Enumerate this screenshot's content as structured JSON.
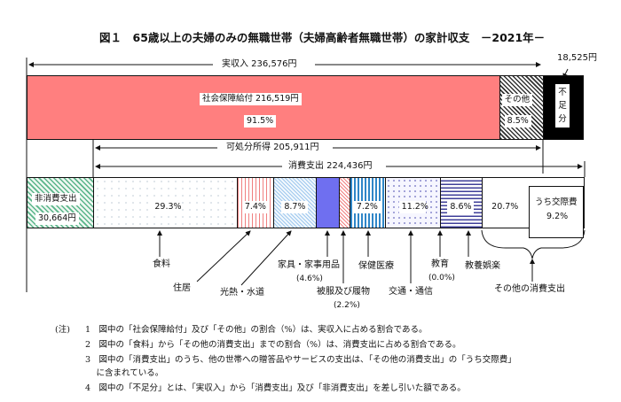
{
  "title": "図１　65歳以上の夫婦のみの無職世帯（夫婦高齢者無職世帯）の家計収支　－2021年－",
  "chart_data": {
    "type": "bar",
    "title": "図１　65歳以上の夫婦のみの無職世帯（夫婦高齢者無職世帯）の家計収支　－2021年－",
    "income": {
      "label": "実収入 236,576円",
      "total": 236576,
      "segments": [
        {
          "name": "社会保障給付",
          "label": "社会保障給付 216,519円",
          "value": 216519,
          "pct": "91.5%",
          "color": "#ff7f7f"
        },
        {
          "name": "その他",
          "label": "その他",
          "value": 20057,
          "pct": "8.5%",
          "color": "#555555"
        }
      ],
      "shortfall": {
        "label": "不足分",
        "value": 18525,
        "value_label": "18,525円",
        "color": "#000000"
      }
    },
    "disposable": {
      "label": "可処分所得 205,911円",
      "value": 205911
    },
    "consumption": {
      "label": "消費支出 224,436円",
      "value": 224436
    },
    "non_consumption": {
      "label": "非消費支出",
      "value": 30664,
      "value_label": "30,664円",
      "color": "#5ab58a"
    },
    "categories": [
      "食料",
      "住居",
      "光熱・水道",
      "家具・家事用品",
      "被服及び履物",
      "保健医療",
      "交通・通信",
      "教育",
      "教養娯楽",
      "その他の消費支出"
    ],
    "values": [
      29.3,
      7.4,
      8.7,
      4.6,
      2.2,
      7.2,
      11.2,
      0.0,
      8.6,
      20.7
    ],
    "value_labels": [
      "29.3%",
      "7.4%",
      "8.7%",
      "(4.6%)",
      "(2.2%)",
      "7.2%",
      "11.2%",
      "(0.0%)",
      "8.6%",
      "20.7%"
    ],
    "colors": [
      "#dde6f5",
      "#f28b8b",
      "#9fc8ee",
      "#6f6ff0",
      "#f28b8b",
      "#2f86c8",
      "#b8b8f0",
      "#333399",
      "#3f3f99",
      "#ffffff"
    ],
    "sub_item": {
      "label": "うち交際費",
      "pct": "9.2%"
    }
  },
  "notes": {
    "head": "(注)",
    "items": [
      "1　図中の「社会保障給付」及び「その他」の割合（%）は、実収入に占める割合である。",
      "2　図中の「食料」から「その他の消費支出」までの割合（%）は、消費支出に占める割合である。",
      "3　図中の「消費支出」のうち、他の世帯への贈答品やサービスの支出は、「その他の消費支出」の「うち交際費」",
      "　 に含まれている。",
      "4　図中の「不足分」とは、「実収入」から「消費支出」及び「非消費支出」を差し引いた額である。"
    ]
  }
}
